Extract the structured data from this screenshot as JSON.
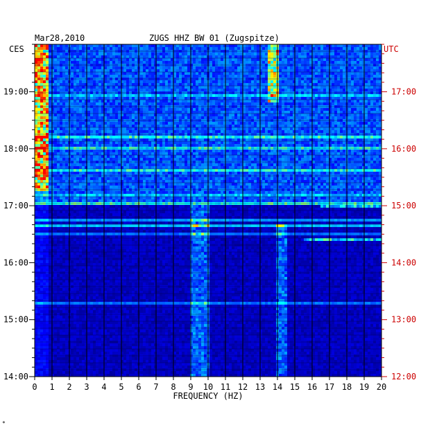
{
  "header": {
    "date": "Mar28,2010",
    "station": "ZUGS HHZ BW 01 (Zugspitze)"
  },
  "chart_data": {
    "type": "heatmap",
    "title": "ZUGS HHZ BW 01 (Zugspitze)",
    "date": "Mar28,2010",
    "xlabel": "FREQUENCY (HZ)",
    "x_ticks": [
      "0",
      "1",
      "2",
      "3",
      "4",
      "5",
      "6",
      "7",
      "8",
      "9",
      "10",
      "11",
      "12",
      "13",
      "14",
      "15",
      "16",
      "17",
      "18",
      "19",
      "20"
    ],
    "xlim": [
      0,
      20
    ],
    "left_axis": {
      "label": "CES",
      "ticks": [
        "19:00",
        "18:00",
        "17:00",
        "16:00",
        "15:00",
        "14:00"
      ],
      "color": "#000000"
    },
    "right_axis": {
      "label": "UTC",
      "ticks": [
        "17:00",
        "16:00",
        "15:00",
        "14:00",
        "13:00",
        "12:00"
      ],
      "color": "#cc0000"
    },
    "time_range_ces": [
      "14:00",
      "19:50"
    ],
    "grid": true,
    "colormap": [
      "#00007f",
      "#0000ff",
      "#0080ff",
      "#00ffff",
      "#ffff00",
      "#ff0000"
    ],
    "features": [
      {
        "band_hz": [
          0,
          0.8
        ],
        "time_ces": [
          "17:15",
          "19:50"
        ],
        "intensity": "high"
      },
      {
        "band_hz": [
          13.4,
          14.0
        ],
        "time_ces": [
          "18:50",
          "19:50"
        ],
        "intensity": "high"
      },
      {
        "band_hz": [
          8.9,
          10.0
        ],
        "time_ces": [
          "14:00",
          "17:00"
        ],
        "intensity": "medium"
      },
      {
        "band_hz": [
          14.0,
          14.5
        ],
        "time_ces": [
          "14:00",
          "16:40"
        ],
        "intensity": "medium"
      },
      {
        "band_hz": [
          16.5,
          20.0
        ],
        "time_ces": [
          "16:58",
          "17:00"
        ],
        "intensity": "high"
      },
      {
        "band_hz": [
          15.5,
          20.0
        ],
        "time_ces": [
          "16:22",
          "16:25"
        ],
        "intensity": "high"
      }
    ]
  },
  "footer": {
    "mark": "*"
  }
}
